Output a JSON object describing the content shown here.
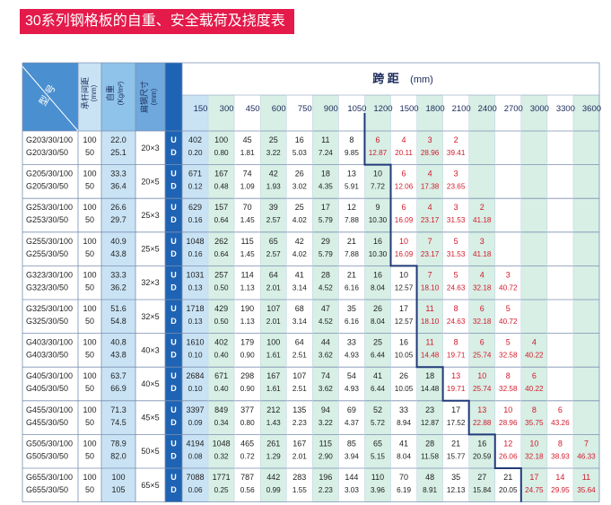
{
  "title": "30系列钢格板的自重、安全载荷及挠度表",
  "headers": {
    "model": "型  号",
    "pitch": "承杆间距",
    "pitch_unit": "(mm)",
    "weight": "自重",
    "weight_unit": "(Kg/m²)",
    "flat_bar": "扁钢尺寸",
    "flat_bar_unit": "(mm)",
    "span": "跨      距",
    "span_unit": "(mm)",
    "ud_u": "U",
    "ud_d": "D"
  },
  "spans": [
    "150",
    "300",
    "450",
    "600",
    "750",
    "900",
    "1050",
    "1200",
    "1500",
    "1800",
    "2100",
    "2400",
    "2700",
    "3000",
    "3300",
    "3600"
  ],
  "rows": [
    {
      "models": [
        "G203/30/100",
        "G203/30/50"
      ],
      "pitch": [
        "100",
        "50"
      ],
      "weight": [
        "22.0",
        "25.1"
      ],
      "bar": "20×3",
      "u": [
        "402",
        "100",
        "45",
        "25",
        "16",
        "11",
        "8",
        "6",
        "4",
        "3",
        "2"
      ],
      "d": [
        "0.20",
        "0.80",
        "1.81",
        "3.22",
        "5.03",
        "7.24",
        "9.85",
        "12.87",
        "20.11",
        "28.96",
        "39.41"
      ],
      "red_from": 7
    },
    {
      "models": [
        "G205/30/100",
        "G205/30/50"
      ],
      "pitch": [
        "100",
        "50"
      ],
      "weight": [
        "33.3",
        "36.4"
      ],
      "bar": "20×5",
      "u": [
        "671",
        "167",
        "74",
        "42",
        "26",
        "18",
        "13",
        "10",
        "6",
        "4",
        "3"
      ],
      "d": [
        "0.12",
        "0.48",
        "1.09",
        "1.93",
        "3.02",
        "4.35",
        "5.91",
        "7.72",
        "12.06",
        "17.38",
        "23.65"
      ],
      "red_from": 8
    },
    {
      "models": [
        "G253/30/100",
        "G253/30/50"
      ],
      "pitch": [
        "100",
        "50"
      ],
      "weight": [
        "26.6",
        "29.7"
      ],
      "bar": "25×3",
      "u": [
        "629",
        "157",
        "70",
        "39",
        "25",
        "17",
        "12",
        "9",
        "6",
        "4",
        "3",
        "2"
      ],
      "d": [
        "0.16",
        "0.64",
        "1.45",
        "2.57",
        "4.02",
        "5.79",
        "7.88",
        "10.30",
        "16.09",
        "23.17",
        "31.53",
        "41.18"
      ],
      "red_from": 8
    },
    {
      "models": [
        "G255/30/100",
        "G255/30/50"
      ],
      "pitch": [
        "100",
        "50"
      ],
      "weight": [
        "40.9",
        "43.8"
      ],
      "bar": "25×5",
      "u": [
        "1048",
        "262",
        "115",
        "65",
        "42",
        "29",
        "21",
        "16",
        "10",
        "7",
        "5",
        "3"
      ],
      "d": [
        "0.16",
        "0.64",
        "1.45",
        "2.57",
        "4.02",
        "5.79",
        "7.88",
        "10.30",
        "16.09",
        "23.17",
        "31.53",
        "41.18"
      ],
      "red_from": 8
    },
    {
      "models": [
        "G323/30/100",
        "G323/30/50"
      ],
      "pitch": [
        "100",
        "50"
      ],
      "weight": [
        "33.3",
        "36.2"
      ],
      "bar": "32×3",
      "u": [
        "1031",
        "257",
        "114",
        "64",
        "41",
        "28",
        "21",
        "16",
        "10",
        "7",
        "5",
        "4",
        "3"
      ],
      "d": [
        "0.13",
        "0.50",
        "1.13",
        "2.01",
        "3.14",
        "4.52",
        "6.16",
        "8.04",
        "12.57",
        "18.10",
        "24.63",
        "32.18",
        "40.72"
      ],
      "red_from": 9
    },
    {
      "models": [
        "G325/30/100",
        "G325/30/50"
      ],
      "pitch": [
        "100",
        "50"
      ],
      "weight": [
        "51.6",
        "54.8"
      ],
      "bar": "32×5",
      "u": [
        "1718",
        "429",
        "190",
        "107",
        "68",
        "47",
        "35",
        "26",
        "17",
        "11",
        "8",
        "6",
        "5"
      ],
      "d": [
        "0.13",
        "0.50",
        "1.13",
        "2.01",
        "3.14",
        "4.52",
        "6.16",
        "8.04",
        "12.57",
        "18.10",
        "24.63",
        "32.18",
        "40.72"
      ],
      "red_from": 9
    },
    {
      "models": [
        "G403/30/100",
        "G403/30/50"
      ],
      "pitch": [
        "100",
        "50"
      ],
      "weight": [
        "40.8",
        "43.8"
      ],
      "bar": "40×3",
      "u": [
        "1610",
        "402",
        "179",
        "100",
        "64",
        "44",
        "33",
        "25",
        "16",
        "11",
        "8",
        "6",
        "5",
        "4"
      ],
      "d": [
        "0.10",
        "0.40",
        "0.90",
        "1.61",
        "2.51",
        "3.62",
        "4.93",
        "6.44",
        "10.05",
        "14.48",
        "19.71",
        "25.74",
        "32.58",
        "40.22"
      ],
      "red_from": 9
    },
    {
      "models": [
        "G405/30/100",
        "G405/30/50"
      ],
      "pitch": [
        "100",
        "50"
      ],
      "weight": [
        "63.7",
        "66.9"
      ],
      "bar": "40×5",
      "u": [
        "2684",
        "671",
        "298",
        "167",
        "107",
        "74",
        "54",
        "41",
        "26",
        "18",
        "13",
        "10",
        "8",
        "6"
      ],
      "d": [
        "0.10",
        "0.40",
        "0.90",
        "1.61",
        "2.51",
        "3.62",
        "4.93",
        "6.44",
        "10.05",
        "14.48",
        "19.71",
        "25.74",
        "32.58",
        "40.22"
      ],
      "red_from": 10
    },
    {
      "models": [
        "G455/30/100",
        "G455/30/50"
      ],
      "pitch": [
        "100",
        "50"
      ],
      "weight": [
        "71.3",
        "74.5"
      ],
      "bar": "45×5",
      "u": [
        "3397",
        "849",
        "377",
        "212",
        "135",
        "94",
        "69",
        "52",
        "33",
        "23",
        "17",
        "13",
        "10",
        "8",
        "6"
      ],
      "d": [
        "0.09",
        "0.34",
        "0.80",
        "1.43",
        "2.23",
        "3.22",
        "4.37",
        "5.72",
        "8.94",
        "12.87",
        "17.52",
        "22.88",
        "28.96",
        "35.75",
        "43.26"
      ],
      "red_from": 11
    },
    {
      "models": [
        "G505/30/100",
        "G505/30/50"
      ],
      "pitch": [
        "100",
        "50"
      ],
      "weight": [
        "78.9",
        "82.0"
      ],
      "bar": "50×5",
      "u": [
        "4194",
        "1048",
        "465",
        "261",
        "167",
        "115",
        "85",
        "65",
        "41",
        "28",
        "21",
        "16",
        "12",
        "10",
        "8",
        "7"
      ],
      "d": [
        "0.08",
        "0.32",
        "0.72",
        "1.29",
        "2.01",
        "2.90",
        "3.94",
        "5.15",
        "8.04",
        "11.58",
        "15.77",
        "20.59",
        "26.06",
        "32.18",
        "38.93",
        "46.33"
      ],
      "red_from": 12
    },
    {
      "models": [
        "G655/30/100",
        "G655/30/50"
      ],
      "pitch": [
        "100",
        "50"
      ],
      "weight": [
        "100",
        "105"
      ],
      "bar": "65×5",
      "u": [
        "7088",
        "1771",
        "787",
        "442",
        "283",
        "196",
        "144",
        "110",
        "70",
        "48",
        "35",
        "27",
        "21",
        "17",
        "14",
        "11"
      ],
      "d": [
        "0.06",
        "0.25",
        "0.56",
        "0.99",
        "1.55",
        "2.23",
        "3.03",
        "3.96",
        "6.19",
        "8.91",
        "12.13",
        "15.84",
        "20.05",
        "24.75",
        "29.95",
        "35.64"
      ],
      "red_from": 13
    }
  ],
  "colors": {
    "title_bg": "#e41a4a",
    "header_blue": "#4a8fd0",
    "col_light": "#c9e3f5",
    "col_mint": "#d7efe5",
    "red": "#d21a2c",
    "ud_blue": "#1f64b4",
    "line": "#223a7a"
  }
}
